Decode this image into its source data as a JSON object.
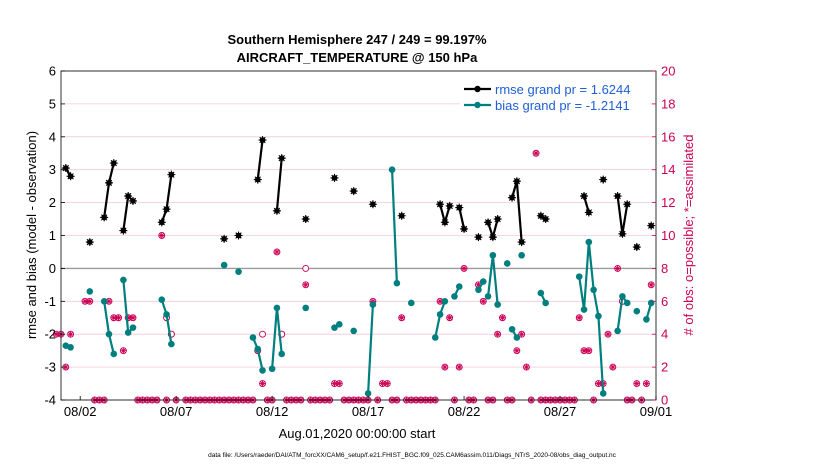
{
  "chart_data": {
    "type": "line",
    "title_line1": "Southern Hemisphere 247 / 249 = 99.197%",
    "title_line2": "AIRCRAFT_TEMPERATURE @ 150 hPa",
    "ylabel_left": "rmse and bias (model - observation)",
    "ylabel_right": "# of obs: o=possible; *=assimilated",
    "xlabel": "Aug.01,2020 00:00:00 start",
    "footer": "data file: /Users/raeder/DAI/ATM_forcXX/CAM6_setup/f.e21.FHIST_BGC.f09_025.CAM6assim.011/Diags_NTrS_2020-08/obs_diag_output.nc",
    "ylim_left": [
      -4,
      6
    ],
    "ylim_right": [
      0,
      20
    ],
    "xlim_days": [
      0.5,
      31.5
    ],
    "x_tick_days": [
      1.5,
      6.5,
      11.5,
      16.5,
      21.5,
      26.5,
      31.5
    ],
    "x_tick_labels": [
      "08/02",
      "08/07",
      "08/12",
      "08/17",
      "08/22",
      "08/27",
      "09/01"
    ],
    "y_ticks_left": [
      "-4",
      "-3",
      "-2",
      "-1",
      "0",
      "1",
      "2",
      "3",
      "4",
      "5",
      "6"
    ],
    "y_ticks_right": [
      "0",
      "2",
      "4",
      "6",
      "8",
      "10",
      "12",
      "14",
      "16",
      "18",
      "20"
    ],
    "legend": {
      "rmse_label": "rmse grand pr = 1.6244",
      "bias_label": "bias grand pr = -1.2141"
    },
    "colors": {
      "rmse": "#000000",
      "bias": "#007f7f",
      "obs": "#cc0055",
      "zero_line": "#9a9a9a",
      "grid": "#f2c8d8"
    },
    "series": [
      {
        "name": "rmse",
        "segments": [
          [
            [
              0.75,
              3.05
            ],
            [
              1.0,
              2.8
            ]
          ],
          [
            [
              2.0,
              0.8
            ]
          ],
          [
            [
              2.75,
              1.55
            ],
            [
              3.0,
              2.6
            ],
            [
              3.25,
              3.2
            ]
          ],
          [
            [
              3.75,
              1.15
            ],
            [
              4.0,
              2.2
            ],
            [
              4.25,
              2.05
            ]
          ],
          [
            [
              5.75,
              1.4
            ],
            [
              6.0,
              1.8
            ],
            [
              6.25,
              2.85
            ]
          ],
          [
            [
              9.0,
              0.9
            ]
          ],
          [
            [
              9.75,
              1.0
            ]
          ],
          [
            [
              10.75,
              2.7
            ],
            [
              11.0,
              3.9
            ]
          ],
          [
            [
              11.75,
              1.75
            ],
            [
              12.0,
              3.35
            ]
          ],
          [
            [
              13.25,
              1.5
            ]
          ],
          [
            [
              14.75,
              2.75
            ]
          ],
          [
            [
              15.75,
              2.35
            ]
          ],
          [
            [
              16.75,
              1.95
            ]
          ],
          [
            [
              18.25,
              1.6
            ]
          ],
          [
            [
              20.25,
              1.95
            ],
            [
              20.5,
              1.4
            ],
            [
              20.75,
              1.9
            ]
          ],
          [
            [
              21.25,
              1.85
            ],
            [
              21.5,
              1.2
            ]
          ],
          [
            [
              22.25,
              0.95
            ]
          ],
          [
            [
              22.75,
              1.4
            ],
            [
              23.0,
              0.95
            ],
            [
              23.25,
              1.5
            ]
          ],
          [
            [
              24.0,
              2.15
            ],
            [
              24.25,
              2.65
            ],
            [
              24.5,
              0.8
            ]
          ],
          [
            [
              25.5,
              1.6
            ],
            [
              25.75,
              1.5
            ]
          ],
          [
            [
              27.75,
              2.2
            ],
            [
              28.0,
              1.7
            ]
          ],
          [
            [
              28.75,
              2.7
            ]
          ],
          [
            [
              29.5,
              2.2
            ],
            [
              29.75,
              1.05
            ],
            [
              30.0,
              1.95
            ]
          ],
          [
            [
              30.5,
              0.65
            ]
          ],
          [
            [
              31.25,
              1.3
            ]
          ]
        ]
      },
      {
        "name": "bias",
        "segments": [
          [
            [
              0.75,
              -2.35
            ],
            [
              1.0,
              -2.4
            ]
          ],
          [
            [
              2.0,
              -0.7
            ]
          ],
          [
            [
              2.75,
              -1.0
            ],
            [
              3.0,
              -2.0
            ],
            [
              3.25,
              -2.6
            ]
          ],
          [
            [
              3.75,
              -0.35
            ],
            [
              4.0,
              -1.95
            ],
            [
              4.25,
              -1.8
            ]
          ],
          [
            [
              5.75,
              -0.95
            ],
            [
              6.0,
              -1.4
            ],
            [
              6.25,
              -2.3
            ]
          ],
          [
            [
              9.0,
              0.1
            ]
          ],
          [
            [
              9.75,
              -0.1
            ]
          ],
          [
            [
              10.5,
              -2.1
            ],
            [
              10.75,
              -2.45
            ],
            [
              11.0,
              -3.1
            ]
          ],
          [
            [
              11.5,
              -3.05
            ],
            [
              11.75,
              -1.2
            ],
            [
              12.0,
              -2.6
            ]
          ],
          [
            [
              13.25,
              -1.2
            ]
          ],
          [
            [
              14.75,
              -1.8
            ],
            [
              15.0,
              -1.7
            ]
          ],
          [
            [
              15.75,
              -1.9
            ]
          ],
          [
            [
              16.5,
              -3.8
            ],
            [
              16.75,
              -1.1
            ]
          ],
          [
            [
              17.75,
              3.0
            ],
            [
              18.0,
              -0.45
            ]
          ],
          [
            [
              18.75,
              -1.05
            ]
          ],
          [
            [
              20.0,
              -2.1
            ],
            [
              20.25,
              -1.4
            ],
            [
              20.5,
              -1.0
            ]
          ],
          [
            [
              21.0,
              -0.85
            ],
            [
              21.25,
              -0.55
            ]
          ],
          [
            [
              22.25,
              -0.65
            ],
            [
              22.5,
              -0.4
            ]
          ],
          [
            [
              22.75,
              -0.85
            ],
            [
              23.0,
              0.4
            ],
            [
              23.25,
              -1.1
            ]
          ],
          [
            [
              23.75,
              0.15
            ]
          ],
          [
            [
              24.0,
              -1.85
            ],
            [
              24.25,
              -2.1
            ]
          ],
          [
            [
              24.5,
              0.4
            ]
          ],
          [
            [
              25.5,
              -0.75
            ],
            [
              25.75,
              -1.05
            ]
          ],
          [
            [
              27.5,
              -0.25
            ],
            [
              27.75,
              -1.25
            ],
            [
              28.0,
              0.8
            ],
            [
              28.25,
              -0.65
            ],
            [
              28.5,
              -1.45
            ],
            [
              28.75,
              -3.8
            ]
          ],
          [
            [
              29.5,
              -1.9
            ],
            [
              29.75,
              -0.85
            ],
            [
              30.0,
              -1.05
            ]
          ],
          [
            [
              30.5,
              -1.3
            ]
          ],
          [
            [
              31.0,
              -1.55
            ],
            [
              31.25,
              -1.05
            ]
          ]
        ]
      }
    ],
    "obs_assimilated": [
      [
        0.25,
        4
      ],
      [
        0.5,
        4
      ],
      [
        0.75,
        2
      ],
      [
        1.0,
        4
      ],
      [
        1.75,
        6
      ],
      [
        2.0,
        6
      ],
      [
        2.25,
        0
      ],
      [
        2.5,
        0
      ],
      [
        2.75,
        0
      ],
      [
        3.0,
        6
      ],
      [
        3.25,
        5
      ],
      [
        3.5,
        5
      ],
      [
        3.75,
        3
      ],
      [
        4.0,
        5
      ],
      [
        4.25,
        5
      ],
      [
        4.5,
        0
      ],
      [
        4.75,
        0
      ],
      [
        5.0,
        0
      ],
      [
        5.25,
        0
      ],
      [
        5.5,
        0
      ],
      [
        5.75,
        10
      ],
      [
        6.0,
        0
      ],
      [
        6.25,
        4
      ],
      [
        6.5,
        0
      ],
      [
        7.0,
        0
      ],
      [
        7.25,
        0
      ],
      [
        7.5,
        0
      ],
      [
        7.75,
        0
      ],
      [
        8.0,
        0
      ],
      [
        8.25,
        0
      ],
      [
        8.5,
        0
      ],
      [
        8.75,
        0
      ],
      [
        9.0,
        0
      ],
      [
        9.25,
        0
      ],
      [
        9.5,
        0
      ],
      [
        9.75,
        0
      ],
      [
        10.0,
        0
      ],
      [
        10.25,
        0
      ],
      [
        10.5,
        0
      ],
      [
        10.75,
        3
      ],
      [
        11.0,
        1
      ],
      [
        11.25,
        0
      ],
      [
        11.5,
        0
      ],
      [
        11.75,
        9
      ],
      [
        12.0,
        4
      ],
      [
        12.25,
        0
      ],
      [
        12.5,
        0
      ],
      [
        12.75,
        0
      ],
      [
        13.0,
        0
      ],
      [
        13.25,
        7
      ],
      [
        13.5,
        0
      ],
      [
        13.75,
        0
      ],
      [
        14.0,
        0
      ],
      [
        14.25,
        0
      ],
      [
        14.5,
        0
      ],
      [
        14.75,
        1
      ],
      [
        15.0,
        1
      ],
      [
        15.25,
        0
      ],
      [
        15.5,
        0
      ],
      [
        15.75,
        0
      ],
      [
        16.0,
        0
      ],
      [
        16.25,
        0
      ],
      [
        16.5,
        0
      ],
      [
        16.75,
        6
      ],
      [
        17.0,
        0
      ],
      [
        17.25,
        1
      ],
      [
        17.5,
        1
      ],
      [
        17.75,
        0
      ],
      [
        18.0,
        0
      ],
      [
        18.25,
        5
      ],
      [
        18.5,
        0
      ],
      [
        18.75,
        0
      ],
      [
        19.0,
        0
      ],
      [
        19.25,
        0
      ],
      [
        19.5,
        0
      ],
      [
        19.75,
        0
      ],
      [
        20.0,
        0
      ],
      [
        20.25,
        6
      ],
      [
        20.5,
        2
      ],
      [
        20.75,
        5
      ],
      [
        21.0,
        0
      ],
      [
        21.25,
        2
      ],
      [
        21.5,
        8
      ],
      [
        21.75,
        0
      ],
      [
        22.0,
        0
      ],
      [
        22.25,
        7
      ],
      [
        22.5,
        6
      ],
      [
        22.75,
        0
      ],
      [
        23.0,
        0
      ],
      [
        23.25,
        4
      ],
      [
        23.5,
        5
      ],
      [
        23.75,
        0
      ],
      [
        24.0,
        0
      ],
      [
        24.25,
        3
      ],
      [
        24.5,
        4
      ],
      [
        24.75,
        2
      ],
      [
        25.0,
        0
      ],
      [
        25.25,
        15
      ],
      [
        25.5,
        0
      ],
      [
        25.75,
        0
      ],
      [
        26.0,
        0
      ],
      [
        26.25,
        0
      ],
      [
        26.5,
        0
      ],
      [
        26.75,
        0
      ],
      [
        27.0,
        0
      ],
      [
        27.25,
        0
      ],
      [
        27.5,
        5
      ],
      [
        27.75,
        3
      ],
      [
        28.0,
        3
      ],
      [
        28.25,
        0
      ],
      [
        28.5,
        1
      ],
      [
        28.75,
        1
      ],
      [
        29.0,
        4
      ],
      [
        29.25,
        2
      ],
      [
        29.5,
        8
      ],
      [
        29.75,
        6
      ],
      [
        30.0,
        0
      ],
      [
        30.25,
        0
      ],
      [
        30.5,
        1
      ],
      [
        30.75,
        0
      ],
      [
        31.0,
        1
      ],
      [
        31.25,
        7
      ]
    ],
    "obs_possible_only": [
      [
        6.0,
        5
      ],
      [
        6.25,
        4
      ],
      [
        11.0,
        4
      ],
      [
        12.0,
        4
      ],
      [
        13.25,
        8
      ],
      [
        29.75,
        6
      ]
    ]
  }
}
